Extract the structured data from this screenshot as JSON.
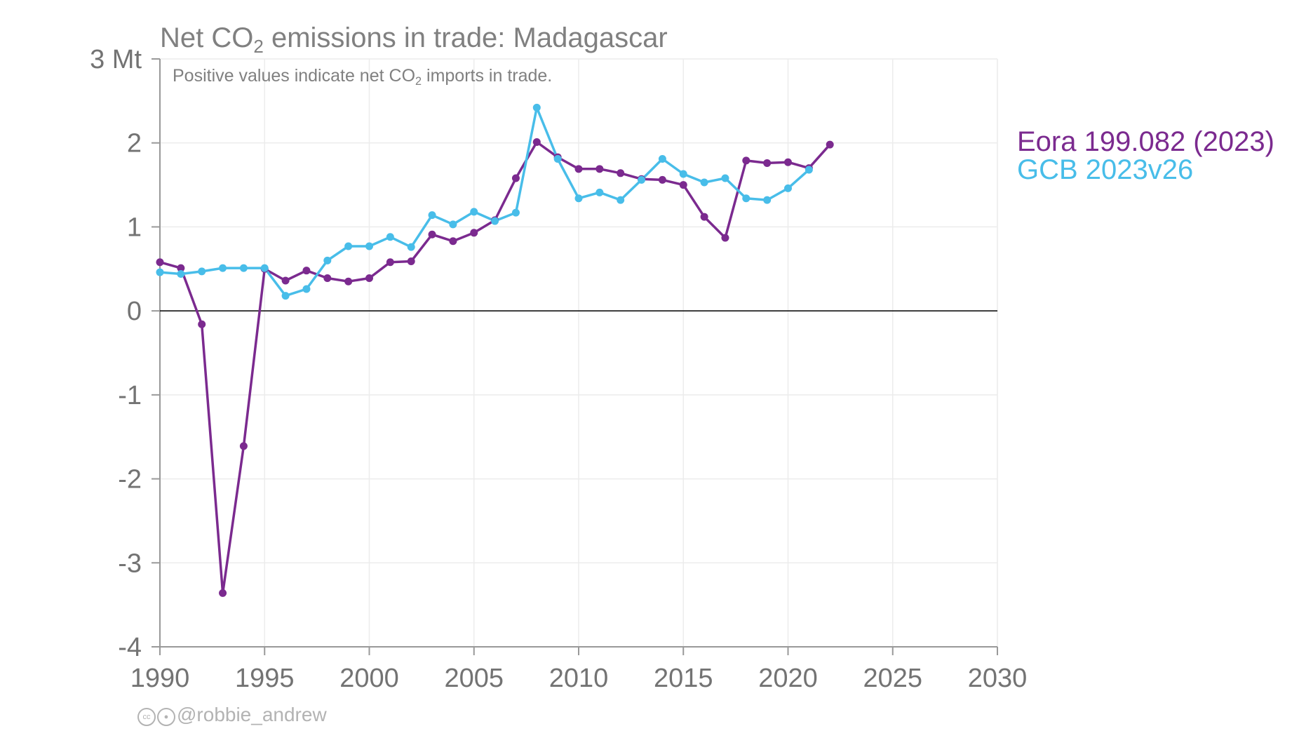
{
  "title_prefix": "Net CO",
  "title_sub": "2",
  "title_suffix": " emissions in trade: Madagascar",
  "subtitle_prefix": "Positive values indicate net CO",
  "subtitle_sub": "2",
  "subtitle_suffix": " imports in trade.",
  "credit": "@robbie_andrew",
  "credit_icons": [
    "cc-icon",
    "by-icon"
  ],
  "chart_data": {
    "type": "line",
    "y_unit": "Mt",
    "ylim": [
      -4,
      3
    ],
    "xlim": [
      1990,
      2030
    ],
    "grid": true,
    "legend_position": "right",
    "x_ticks": [
      1990,
      1995,
      2000,
      2005,
      2010,
      2015,
      2020,
      2025,
      2030
    ],
    "y_ticks": [
      -4,
      -3,
      -2,
      -1,
      0,
      1,
      2,
      3
    ],
    "y_tick_labels": [
      "-4",
      "-3",
      "-2",
      "-1",
      "0",
      "1",
      "2",
      "3 Mt"
    ],
    "series": [
      {
        "name": "Eora 199.082 (2023)",
        "color": "#7b2a8f",
        "x": [
          1990,
          1991,
          1992,
          1993,
          1994,
          1995,
          1996,
          1997,
          1998,
          1999,
          2000,
          2001,
          2002,
          2003,
          2004,
          2005,
          2006,
          2007,
          2008,
          2009,
          2010,
          2011,
          2012,
          2013,
          2014,
          2015,
          2016,
          2017,
          2018,
          2019,
          2020,
          2021,
          2022
        ],
        "values": [
          0.58,
          0.51,
          -0.16,
          -3.36,
          -1.61,
          0.5,
          0.36,
          0.48,
          0.39,
          0.35,
          0.39,
          0.58,
          0.59,
          0.91,
          0.83,
          0.93,
          1.08,
          1.58,
          2.01,
          1.83,
          1.69,
          1.69,
          1.64,
          1.57,
          1.56,
          1.5,
          1.12,
          0.87,
          1.79,
          1.76,
          1.77,
          1.7,
          1.98
        ]
      },
      {
        "name": "GCB 2023v26",
        "color": "#48bde9",
        "x": [
          1990,
          1991,
          1992,
          1993,
          1994,
          1995,
          1996,
          1997,
          1998,
          1999,
          2000,
          2001,
          2002,
          2003,
          2004,
          2005,
          2006,
          2007,
          2008,
          2009,
          2010,
          2011,
          2012,
          2013,
          2014,
          2015,
          2016,
          2017,
          2018,
          2019,
          2020,
          2021
        ],
        "values": [
          0.46,
          0.44,
          0.47,
          0.51,
          0.51,
          0.51,
          0.18,
          0.26,
          0.6,
          0.77,
          0.77,
          0.88,
          0.76,
          1.14,
          1.03,
          1.18,
          1.07,
          1.17,
          2.42,
          1.81,
          1.34,
          1.41,
          1.32,
          1.56,
          1.81,
          1.63,
          1.53,
          1.58,
          1.34,
          1.32,
          1.46,
          1.68
        ]
      }
    ]
  }
}
